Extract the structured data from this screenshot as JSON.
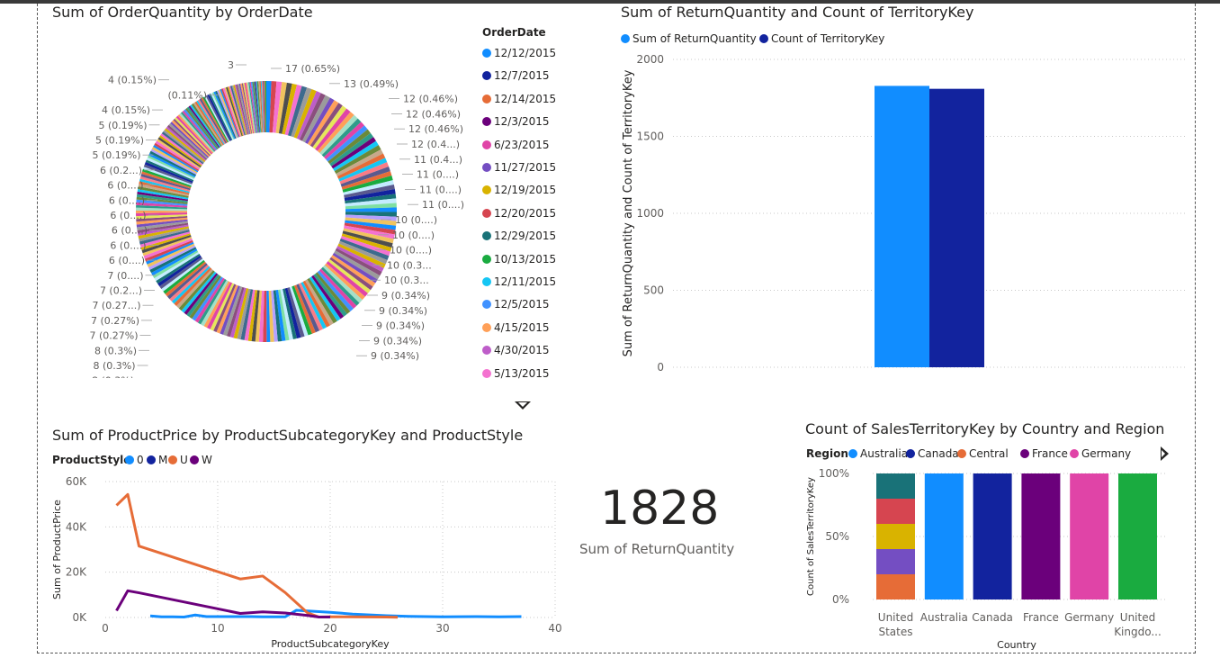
{
  "visuals": {
    "donut": {
      "title": "Sum of OrderQuantity by OrderDate",
      "legend_title": "OrderDate",
      "legend_items": [
        {
          "label": "12/12/2015",
          "color": "#118dff"
        },
        {
          "label": "12/7/2015",
          "color": "#12239e"
        },
        {
          "label": "12/14/2015",
          "color": "#e66c37"
        },
        {
          "label": "12/3/2015",
          "color": "#6b007b"
        },
        {
          "label": "6/23/2015",
          "color": "#e044a7"
        },
        {
          "label": "11/27/2015",
          "color": "#744ec2"
        },
        {
          "label": "12/19/2015",
          "color": "#d9b300"
        },
        {
          "label": "12/20/2015",
          "color": "#d64550"
        },
        {
          "label": "12/29/2015",
          "color": "#197278"
        },
        {
          "label": "10/13/2015",
          "color": "#1aab40"
        },
        {
          "label": "12/11/2015",
          "color": "#15c6f4"
        },
        {
          "label": "12/5/2015",
          "color": "#4092ff"
        },
        {
          "label": "4/15/2015",
          "color": "#ffa058"
        },
        {
          "label": "4/30/2015",
          "color": "#be5dc9"
        },
        {
          "label": "5/13/2015",
          "color": "#f472d0"
        }
      ],
      "slice_labels_right": [
        "17 (0.65%)",
        "13 (0.49%)",
        "12 (0.46%)",
        "12 (0.46%)",
        "12 (0.46%)",
        "12 (0.4...)",
        "11 (0.4...)",
        "11 (0....)",
        "11 (0....)",
        "11 (0....)",
        "10 (0....)",
        "10 (0....)",
        "10 (0....)",
        "10 (0.3...",
        "10 (0.3...",
        "9 (0.34%)",
        "9 (0.34%)",
        "9 (0.34%)",
        "9 (0.34%)",
        "9 (0.34%)"
      ],
      "slice_labels_left": [
        "3",
        "4 (0.15%)",
        "(0.11%)",
        "4 (0.15%)",
        "5 (0.19%)",
        "5 (0.19%)",
        "5 (0.19%)",
        "6 (0.2...)",
        "6 (0....)",
        "6 (0....)",
        "6 (0....)",
        "6 (0....)",
        "6 (0....)",
        "6 (0....)",
        "7 (0....)",
        "7 (0.2...)",
        "7 (0.27...)",
        "7 (0.27%)",
        "7 (0.27%)",
        "8 (0.3%)",
        "8 (0.3%)",
        "8 (0.3%)"
      ]
    },
    "bar": {
      "title": "Sum of ReturnQuantity and Count of TerritoryKey",
      "ylabel": "Sum of ReturnQuantity and Count of TerritoryKey",
      "ticks": [
        "0",
        "500",
        "1000",
        "1500",
        "2000"
      ]
    },
    "line": {
      "title": "Sum of ProductPrice by ProductSubcategoryKey and ProductStyle",
      "legend_title": "ProductStyle",
      "xlabel": "ProductSubcategoryKey",
      "ylabel": "Sum of ProductPrice",
      "yticks": [
        "0K",
        "20K",
        "40K",
        "60K"
      ],
      "xticks": [
        "0",
        "10",
        "20",
        "30",
        "40"
      ]
    },
    "card": {
      "value": "1828",
      "label": "Sum of ReturnQuantity"
    },
    "stacked": {
      "title": "Count of SalesTerritoryKey by Country and Region",
      "legend_title": "Region",
      "ylabel": "Count of SalesTerritoryKey",
      "xlabel": "Country",
      "yticks": [
        "0%",
        "50%",
        "100%"
      ]
    }
  },
  "chart_data": [
    {
      "type": "pie",
      "title": "Sum of OrderQuantity by OrderDate",
      "labels": [
        "12/12/2015",
        "12/7/2015",
        "12/14/2015",
        "12/3/2015",
        "6/23/2015",
        "11/27/2015",
        "12/19/2015",
        "12/20/2015",
        "12/29/2015",
        "10/13/2015",
        "12/11/2015",
        "12/5/2015",
        "4/15/2015",
        "4/30/2015",
        "5/13/2015"
      ],
      "values": [
        17,
        13,
        12,
        12,
        12,
        12,
        11,
        11,
        11,
        11,
        10,
        10,
        10,
        10,
        10
      ],
      "donut": true
    },
    {
      "type": "bar",
      "title": "Sum of ReturnQuantity and Count of TerritoryKey",
      "categories": [
        ""
      ],
      "series": [
        {
          "name": "Sum of ReturnQuantity",
          "values": [
            1828
          ],
          "color": "#118dff"
        },
        {
          "name": "Count of TerritoryKey",
          "values": [
            1809
          ],
          "color": "#12239e"
        }
      ],
      "ylabel": "Sum of ReturnQuantity and Count of TerritoryKey",
      "ylim": [
        0,
        2000
      ]
    },
    {
      "type": "line",
      "title": "Sum of ProductPrice by ProductSubcategoryKey and ProductStyle",
      "xlabel": "ProductSubcategoryKey",
      "ylabel": "Sum of ProductPrice",
      "xlim": [
        0,
        40
      ],
      "ylim": [
        0,
        60000
      ],
      "series": [
        {
          "name": "0",
          "color": "#118dff",
          "points": [
            [
              4,
              700
            ],
            [
              5,
              300
            ],
            [
              6,
              300
            ],
            [
              7,
              200
            ],
            [
              8,
              1100
            ],
            [
              9,
              400
            ],
            [
              12,
              400
            ],
            [
              13,
              400
            ],
            [
              14,
              300
            ],
            [
              16,
              300
            ],
            [
              17,
              3200
            ],
            [
              18,
              2900
            ],
            [
              20,
              2300
            ],
            [
              22,
              1500
            ],
            [
              25,
              800
            ],
            [
              27,
              500
            ],
            [
              30,
              300
            ],
            [
              33,
              400
            ],
            [
              35,
              300
            ],
            [
              37,
              400
            ]
          ]
        },
        {
          "name": "M",
          "color": "#12239e",
          "points": []
        },
        {
          "name": "U",
          "color": "#e66c37",
          "points": [
            [
              1,
              49500
            ],
            [
              2,
              54300
            ],
            [
              3,
              31500
            ],
            [
              12,
              17000
            ],
            [
              14,
              18300
            ],
            [
              16,
              11000
            ],
            [
              18,
              2000
            ],
            [
              19,
              200
            ],
            [
              20,
              300
            ],
            [
              25,
              200
            ],
            [
              26,
              100
            ]
          ]
        },
        {
          "name": "W",
          "color": "#6b007b",
          "points": [
            [
              1,
              3000
            ],
            [
              2,
              11800
            ],
            [
              3,
              10900
            ],
            [
              12,
              1800
            ],
            [
              14,
              2500
            ],
            [
              16,
              2000
            ],
            [
              18,
              900
            ],
            [
              19,
              200
            ],
            [
              20,
              200
            ]
          ]
        }
      ]
    },
    {
      "type": "bar",
      "stacked_percent": true,
      "title": "Count of SalesTerritoryKey by Country and Region",
      "categories": [
        "United States",
        "Australia",
        "Canada",
        "France",
        "Germany",
        "United Kingdo..."
      ],
      "xlabel": "Country",
      "ylabel": "Count of SalesTerritoryKey",
      "legend": [
        {
          "name": "Australia",
          "color": "#118dff"
        },
        {
          "name": "Canada",
          "color": "#12239e"
        },
        {
          "name": "Central",
          "color": "#e66c37"
        },
        {
          "name": "France",
          "color": "#6b007b"
        },
        {
          "name": "Germany",
          "color": "#e044a7"
        }
      ],
      "stacks": [
        [
          {
            "color": "#e66c37",
            "pct": 20
          },
          {
            "color": "#744ec2",
            "pct": 20
          },
          {
            "color": "#d9b300",
            "pct": 20
          },
          {
            "color": "#d64550",
            "pct": 20
          },
          {
            "color": "#197278",
            "pct": 20
          }
        ],
        [
          {
            "color": "#118dff",
            "pct": 100
          }
        ],
        [
          {
            "color": "#12239e",
            "pct": 100
          }
        ],
        [
          {
            "color": "#6b007b",
            "pct": 100
          }
        ],
        [
          {
            "color": "#e044a7",
            "pct": 100
          }
        ],
        [
          {
            "color": "#1aab40",
            "pct": 100
          }
        ]
      ]
    }
  ]
}
